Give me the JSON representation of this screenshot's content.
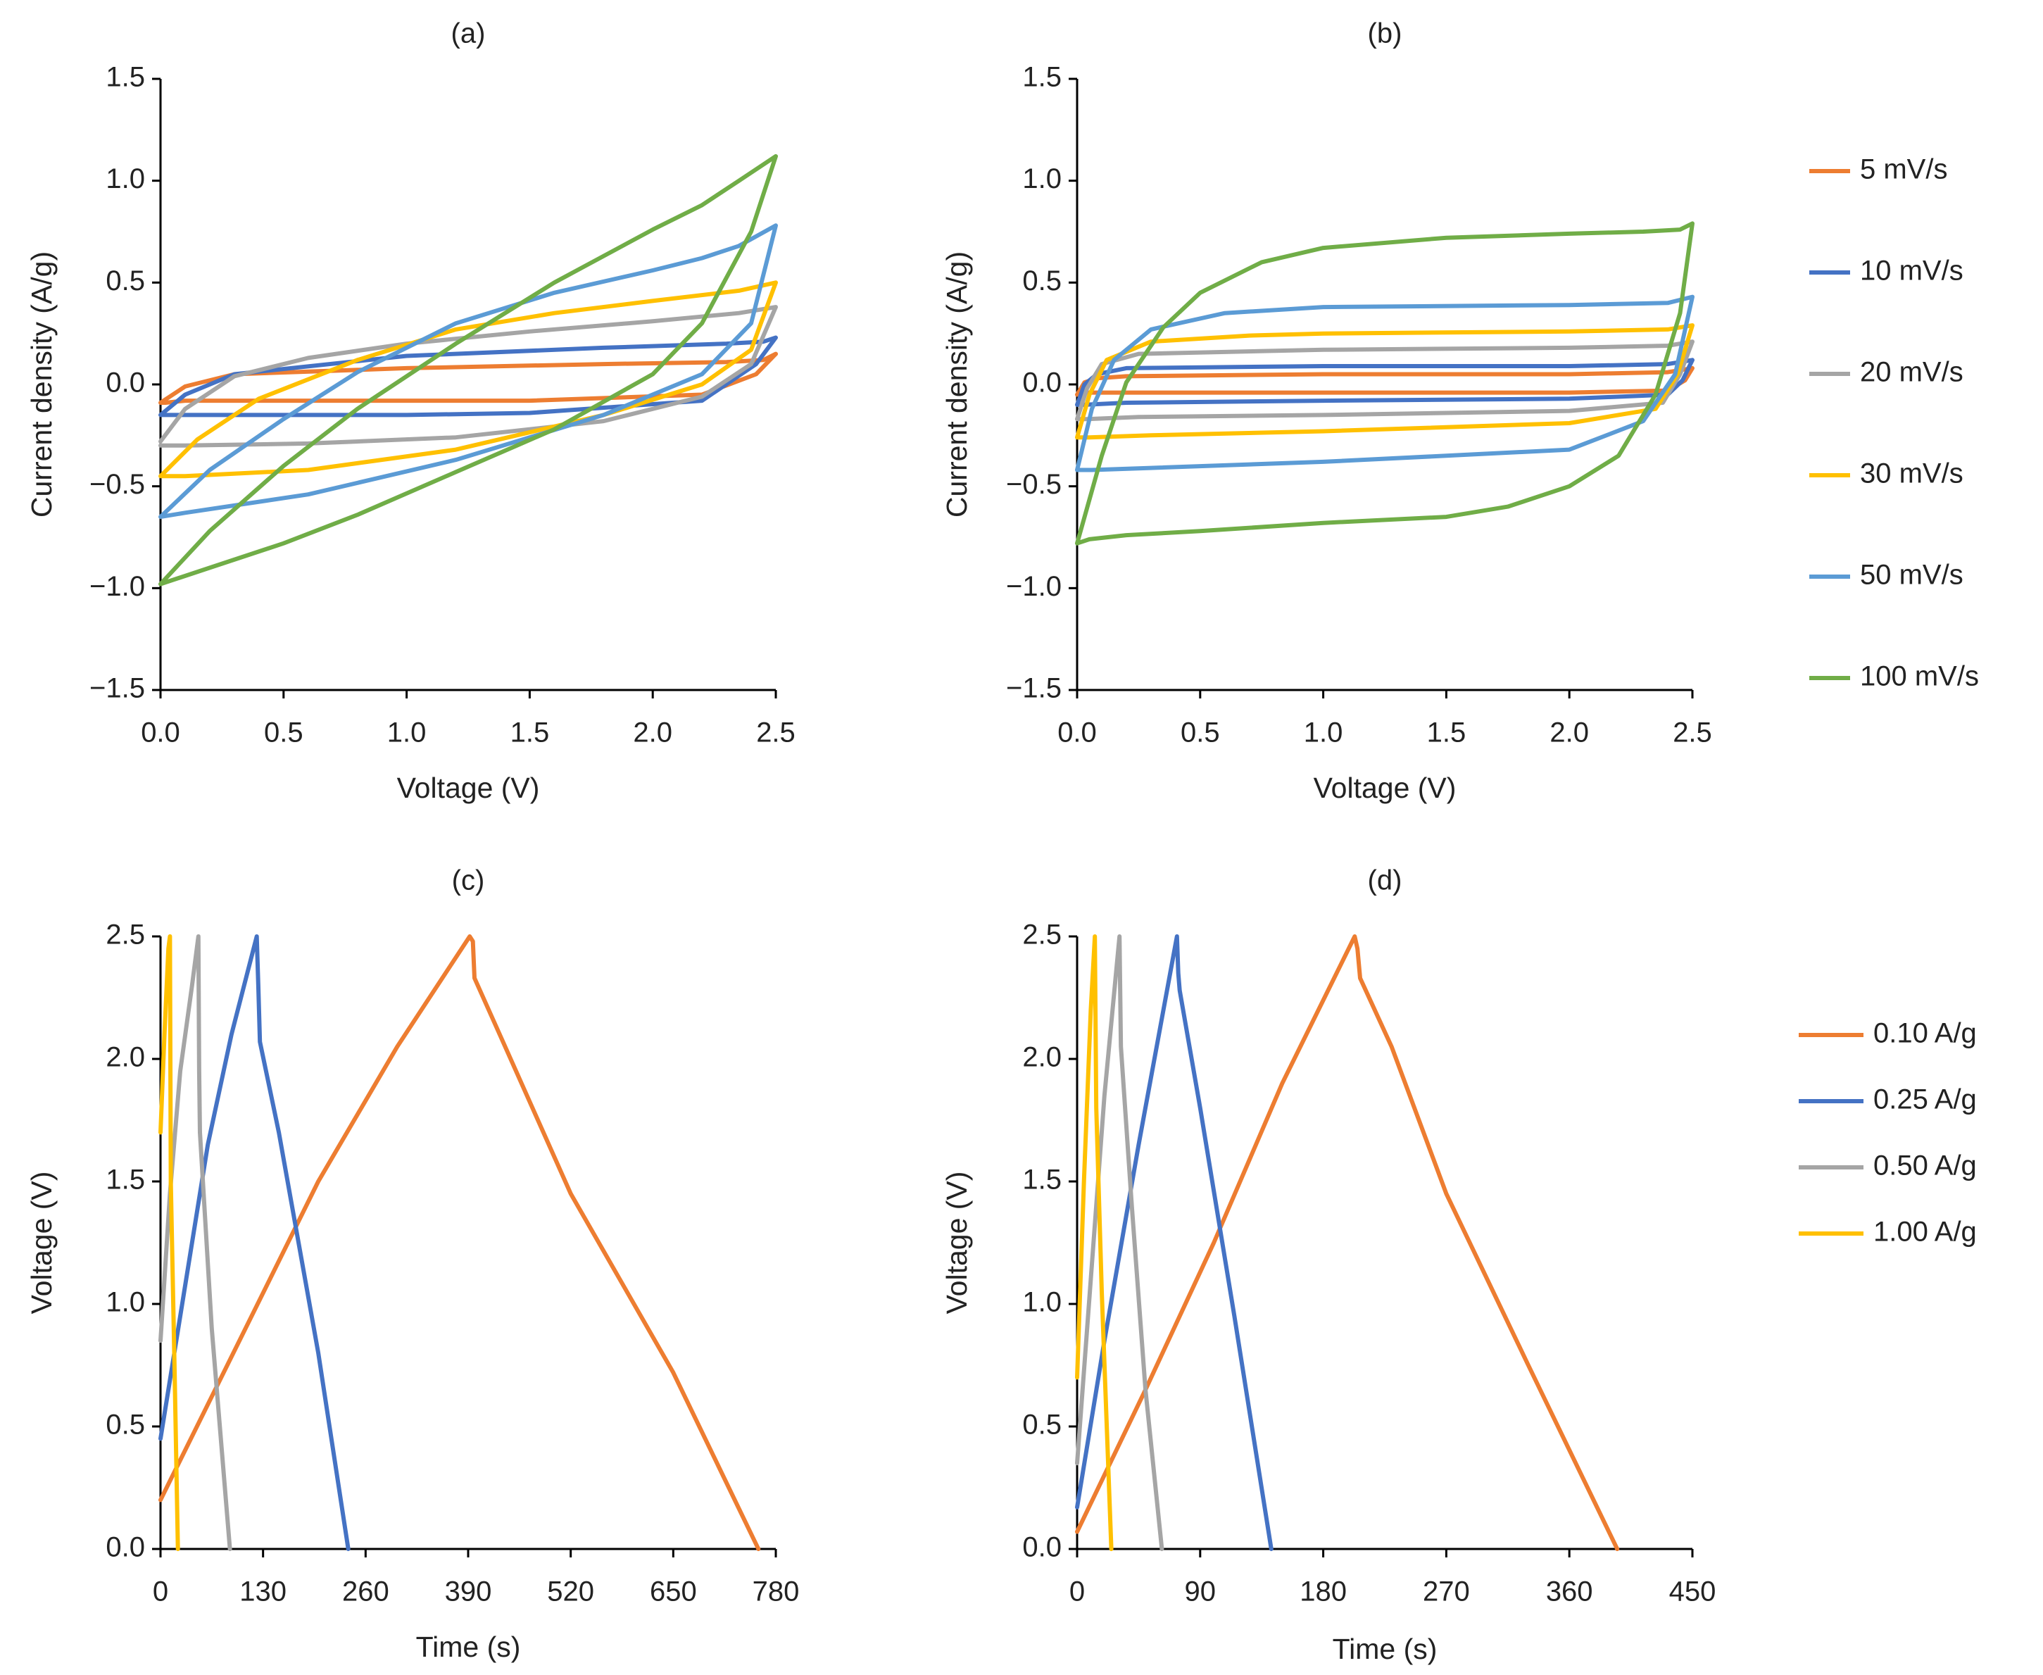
{
  "figure": {
    "chart_data": [
      {
        "panel": "(a)",
        "type": "line",
        "title": "(a)",
        "xlabel": "Voltage (V)",
        "ylabel": "Current density (A/g)",
        "xlim": [
          0,
          2.5
        ],
        "ylim": [
          -1.5,
          1.5
        ],
        "xticks": [
          0,
          0.5,
          1,
          1.5,
          2,
          2.5
        ],
        "xtick_labels": [
          "0.0",
          "0.5",
          "1.0",
          "1.5",
          "2.0",
          "2.5"
        ],
        "yticks": [
          1.5,
          1,
          0.5,
          0,
          -0.5,
          -1,
          -1.5
        ],
        "ytick_labels": [
          "1.5",
          "1.0",
          "0.5",
          "0.0",
          "−0.5",
          "−1.0",
          "−1.5"
        ],
        "legend": false,
        "series": [
          {
            "name": "5 mV/s",
            "color": "#ED7D31",
            "x": [
              0,
              0.1,
              0.3,
              1,
              1.8,
              2.3,
              2.45,
              2.5,
              2.42,
              2.2,
              1.5,
              1,
              0.5,
              0.1,
              0.02,
              0
            ],
            "y": [
              -0.09,
              -0.01,
              0.05,
              0.08,
              0.1,
              0.11,
              0.12,
              0.15,
              0.05,
              -0.05,
              -0.08,
              -0.08,
              -0.08,
              -0.08,
              -0.09,
              -0.09
            ]
          },
          {
            "name": "10 mV/s",
            "color": "#4472C4",
            "x": [
              0,
              0.1,
              0.3,
              1,
              1.8,
              2.3,
              2.45,
              2.5,
              2.42,
              2.2,
              1.5,
              1,
              0.5,
              0.1,
              0.02,
              0
            ],
            "y": [
              -0.15,
              -0.05,
              0.05,
              0.14,
              0.18,
              0.2,
              0.21,
              0.23,
              0.1,
              -0.08,
              -0.14,
              -0.15,
              -0.15,
              -0.15,
              -0.15,
              -0.15
            ]
          },
          {
            "name": "20 mV/s",
            "color": "#A5A5A5",
            "x": [
              0,
              0.1,
              0.3,
              0.6,
              1,
              1.5,
              2,
              2.35,
              2.5,
              2.4,
              2.2,
              1.8,
              1.2,
              0.6,
              0.1,
              0
            ],
            "y": [
              -0.28,
              -0.12,
              0.04,
              0.13,
              0.2,
              0.26,
              0.31,
              0.35,
              0.38,
              0.1,
              -0.06,
              -0.18,
              -0.26,
              -0.29,
              -0.3,
              -0.3
            ]
          },
          {
            "name": "30 mV/s",
            "color": "#FFC000",
            "x": [
              0,
              0.15,
              0.4,
              0.8,
              1.2,
              1.6,
              2,
              2.35,
              2.5,
              2.4,
              2.2,
              1.8,
              1.2,
              0.6,
              0.1,
              0
            ],
            "y": [
              -0.45,
              -0.27,
              -0.07,
              0.12,
              0.27,
              0.35,
              0.41,
              0.46,
              0.5,
              0.17,
              0,
              -0.15,
              -0.32,
              -0.42,
              -0.45,
              -0.45
            ]
          },
          {
            "name": "50 mV/s",
            "color": "#5B9BD5",
            "x": [
              0,
              0.2,
              0.5,
              0.8,
              1.2,
              1.6,
              2,
              2.2,
              2.35,
              2.5,
              2.4,
              2.2,
              1.8,
              1.2,
              0.6,
              0.1,
              0
            ],
            "y": [
              -0.65,
              -0.42,
              -0.17,
              0.06,
              0.3,
              0.45,
              0.56,
              0.62,
              0.68,
              0.78,
              0.3,
              0.05,
              -0.15,
              -0.37,
              -0.54,
              -0.63,
              -0.65
            ]
          },
          {
            "name": "100 mV/s",
            "color": "#70AD47",
            "x": [
              0,
              0.2,
              0.5,
              0.8,
              1.2,
              1.6,
              2,
              2.2,
              2.35,
              2.5,
              2.4,
              2.2,
              2,
              1.6,
              1.2,
              0.8,
              0.5,
              0.2,
              0
            ],
            "y": [
              -0.98,
              -0.72,
              -0.4,
              -0.12,
              0.2,
              0.5,
              0.76,
              0.88,
              1,
              1.12,
              0.75,
              0.3,
              0.05,
              -0.22,
              -0.43,
              -0.64,
              -0.78,
              -0.9,
              -0.98
            ]
          }
        ]
      },
      {
        "panel": "(b)",
        "type": "line",
        "title": "(b)",
        "xlabel": "Voltage (V)",
        "ylabel": "Current density (A/g)",
        "xlim": [
          0,
          2.5
        ],
        "ylim": [
          -1.5,
          1.5
        ],
        "xticks": [
          0,
          0.5,
          1,
          1.5,
          2,
          2.5
        ],
        "xtick_labels": [
          "0.0",
          "0.5",
          "1.0",
          "1.5",
          "2.0",
          "2.5"
        ],
        "yticks": [
          1.5,
          1,
          0.5,
          0,
          -0.5,
          -1,
          -1.5
        ],
        "ytick_labels": [
          "1.5",
          "1.0",
          "0.5",
          "0.0",
          "−0.5",
          "−1.0",
          "−1.5"
        ],
        "legend": "right",
        "series": [
          {
            "name": "5 mV/s",
            "color": "#ED7D31",
            "x": [
              0,
              0.03,
              0.08,
              0.2,
              1,
              2,
              2.4,
              2.5,
              2.47,
              2.4,
              2,
              1,
              0.2,
              0.03,
              0
            ],
            "y": [
              -0.05,
              0.01,
              0.03,
              0.04,
              0.05,
              0.05,
              0.06,
              0.08,
              0.02,
              -0.03,
              -0.04,
              -0.04,
              -0.04,
              -0.04,
              -0.05
            ]
          },
          {
            "name": "10 mV/s",
            "color": "#4472C4",
            "x": [
              0,
              0.03,
              0.08,
              0.2,
              1,
              2,
              2.4,
              2.5,
              2.46,
              2.4,
              2,
              1,
              0.2,
              0.03,
              0
            ],
            "y": [
              -0.1,
              0,
              0.05,
              0.08,
              0.09,
              0.09,
              0.1,
              0.12,
              0.02,
              -0.05,
              -0.07,
              -0.08,
              -0.09,
              -0.1,
              -0.1
            ]
          },
          {
            "name": "20 mV/s",
            "color": "#A5A5A5",
            "x": [
              0,
              0.04,
              0.1,
              0.25,
              1,
              2,
              2.4,
              2.5,
              2.45,
              2.38,
              2,
              1,
              0.25,
              0.04,
              0
            ],
            "y": [
              -0.17,
              -0.02,
              0.1,
              0.15,
              0.17,
              0.18,
              0.19,
              0.21,
              0.05,
              -0.09,
              -0.13,
              -0.15,
              -0.16,
              -0.17,
              -0.17
            ]
          },
          {
            "name": "30 mV/s",
            "color": "#FFC000",
            "x": [
              0,
              0.05,
              0.12,
              0.3,
              0.7,
              1,
              2,
              2.4,
              2.5,
              2.44,
              2.35,
              2,
              1,
              0.3,
              0.05,
              0
            ],
            "y": [
              -0.26,
              -0.05,
              0.12,
              0.21,
              0.24,
              0.25,
              0.26,
              0.27,
              0.29,
              0.05,
              -0.12,
              -0.19,
              -0.23,
              -0.25,
              -0.26,
              -0.26
            ]
          },
          {
            "name": "50 mV/s",
            "color": "#5B9BD5",
            "x": [
              0,
              0.06,
              0.15,
              0.3,
              0.6,
              1,
              2,
              2.4,
              2.5,
              2.43,
              2.3,
              2,
              1,
              0.3,
              0.06,
              0
            ],
            "y": [
              -0.42,
              -0.12,
              0.12,
              0.27,
              0.35,
              0.38,
              0.39,
              0.4,
              0.43,
              0.05,
              -0.18,
              -0.32,
              -0.38,
              -0.41,
              -0.42,
              -0.42
            ]
          },
          {
            "name": "100 mV/s",
            "color": "#70AD47",
            "x": [
              0,
              0.1,
              0.2,
              0.35,
              0.5,
              0.75,
              1,
              1.5,
              2,
              2.3,
              2.45,
              2.5,
              2.45,
              2.35,
              2.2,
              2,
              1.75,
              1.5,
              1,
              0.5,
              0.2,
              0.05,
              0
            ],
            "y": [
              -0.78,
              -0.35,
              0.01,
              0.28,
              0.45,
              0.6,
              0.67,
              0.72,
              0.74,
              0.75,
              0.76,
              0.79,
              0.35,
              -0.05,
              -0.35,
              -0.5,
              -0.6,
              -0.65,
              -0.68,
              -0.72,
              -0.74,
              -0.76,
              -0.78
            ]
          }
        ]
      },
      {
        "panel": "(c)",
        "type": "line",
        "title": "(c)",
        "xlabel": "Time (s)",
        "ylabel": "Voltage (V)",
        "xlim": [
          0,
          780
        ],
        "ylim": [
          0,
          2.5
        ],
        "xticks": [
          0,
          130,
          260,
          390,
          520,
          650,
          780
        ],
        "xtick_labels": [
          "0",
          "130",
          "260",
          "390",
          "520",
          "650",
          "780"
        ],
        "yticks": [
          2.5,
          2,
          1.5,
          1,
          0.5,
          0
        ],
        "ytick_labels": [
          "2.5",
          "2.0",
          "1.5",
          "1.0",
          "0.5",
          "0.0"
        ],
        "legend": false,
        "series": [
          {
            "name": "0.10 A/g",
            "color": "#ED7D31",
            "x": [
              0,
              100,
              200,
              300,
              392,
              396,
              398,
              430,
              520,
              650,
              758
            ],
            "y": [
              0.2,
              0.85,
              1.5,
              2.05,
              2.5,
              2.48,
              2.33,
              2.1,
              1.45,
              0.72,
              0
            ]
          },
          {
            "name": "0.25 A/g",
            "color": "#4472C4",
            "x": [
              0,
              30,
              60,
              90,
              122,
              124,
              126,
              150,
              200,
              238
            ],
            "y": [
              0.45,
              1.05,
              1.65,
              2.1,
              2.5,
              2.3,
              2.07,
              1.7,
              0.8,
              0
            ]
          },
          {
            "name": "0.50 A/g",
            "color": "#A5A5A5",
            "x": [
              0,
              12,
              25,
              40,
              48,
              49,
              50,
              65,
              88
            ],
            "y": [
              0.85,
              1.45,
              1.95,
              2.3,
              2.5,
              1.95,
              1.7,
              0.9,
              0
            ]
          },
          {
            "name": "1.00 A/g",
            "color": "#FFC000",
            "x": [
              0,
              5,
              10,
              12,
              13,
              18,
              22
            ],
            "y": [
              1.7,
              2.1,
              2.45,
              2.5,
              1.5,
              0.7,
              0
            ]
          }
        ]
      },
      {
        "panel": "(d)",
        "type": "line",
        "title": "(d)",
        "xlabel": "Time (s)",
        "ylabel": "Voltage (V)",
        "xlim": [
          0,
          450
        ],
        "ylim": [
          0,
          2.5
        ],
        "xticks": [
          0,
          90,
          180,
          270,
          360,
          450
        ],
        "xtick_labels": [
          "0",
          "90",
          "180",
          "270",
          "360",
          "450"
        ],
        "yticks": [
          2.5,
          2,
          1.5,
          1,
          0.5,
          0
        ],
        "ytick_labels": [
          "2.5",
          "2.0",
          "1.5",
          "1.0",
          "0.5",
          "0.0"
        ],
        "legend": "right",
        "series": [
          {
            "name": "0.10 A/g",
            "color": "#ED7D31",
            "x": [
              0,
              50,
              100,
              150,
              203,
              205,
              207,
              230,
              270,
              330,
              395
            ],
            "y": [
              0.07,
              0.65,
              1.25,
              1.9,
              2.5,
              2.45,
              2.33,
              2.05,
              1.45,
              0.75,
              0
            ]
          },
          {
            "name": "0.25 A/g",
            "color": "#4472C4",
            "x": [
              0,
              20,
              45,
              73,
              74,
              75,
              90,
              115,
              142
            ],
            "y": [
              0.17,
              0.85,
              1.65,
              2.5,
              2.35,
              2.28,
              1.8,
              0.95,
              0
            ]
          },
          {
            "name": "0.50 A/g",
            "color": "#A5A5A5",
            "x": [
              0,
              10,
              20,
              31,
              32,
              40,
              50,
              62
            ],
            "y": [
              0.35,
              1.1,
              1.85,
              2.5,
              2.05,
              1.4,
              0.65,
              0
            ]
          },
          {
            "name": "1.00 A/g",
            "color": "#FFC000",
            "x": [
              0,
              5,
              10,
              13,
              14,
              18,
              25
            ],
            "y": [
              0.7,
              1.5,
              2.2,
              2.5,
              1.8,
              1.05,
              0
            ]
          }
        ]
      }
    ]
  }
}
